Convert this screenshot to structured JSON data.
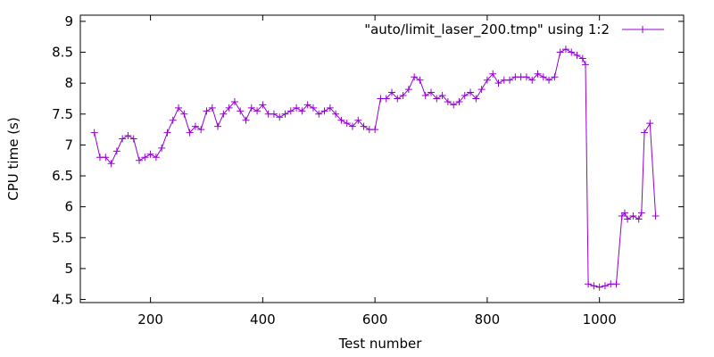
{
  "chart_data": {
    "type": "line",
    "xlabel": "Test number",
    "ylabel": "CPU time (s)",
    "xlim": [
      75,
      1150
    ],
    "ylim": [
      4.45,
      9.1
    ],
    "x_ticks": [
      {
        "value": 200,
        "label": "200"
      },
      {
        "value": 400,
        "label": "400"
      },
      {
        "value": 600,
        "label": "600"
      },
      {
        "value": 800,
        "label": "800"
      },
      {
        "value": 1000,
        "label": "1000"
      }
    ],
    "y_ticks": [
      {
        "value": 4.5,
        "label": "4.5"
      },
      {
        "value": 5,
        "label": "5"
      },
      {
        "value": 5.5,
        "label": "5.5"
      },
      {
        "value": 6,
        "label": "6"
      },
      {
        "value": 6.5,
        "label": "6.5"
      },
      {
        "value": 7,
        "label": "7"
      },
      {
        "value": 7.5,
        "label": "7.5"
      },
      {
        "value": 8,
        "label": "8"
      },
      {
        "value": 8.5,
        "label": "8.5"
      },
      {
        "value": 9,
        "label": "9"
      }
    ],
    "grid": false,
    "legend_position": "top-right",
    "series": [
      {
        "name": "\"auto/limit_laser_200.tmp\" using 1:2",
        "color": "#9400d3",
        "style": "linespoints",
        "marker": "plus",
        "x": [
          100,
          110,
          120,
          130,
          140,
          150,
          160,
          170,
          180,
          190,
          200,
          210,
          220,
          230,
          240,
          250,
          260,
          270,
          280,
          290,
          300,
          310,
          320,
          330,
          340,
          350,
          360,
          370,
          380,
          390,
          400,
          410,
          420,
          430,
          440,
          450,
          460,
          470,
          480,
          490,
          500,
          510,
          520,
          530,
          540,
          550,
          560,
          570,
          580,
          590,
          600,
          610,
          620,
          630,
          640,
          650,
          660,
          670,
          680,
          690,
          700,
          710,
          720,
          730,
          740,
          750,
          760,
          770,
          780,
          790,
          800,
          810,
          820,
          830,
          840,
          850,
          860,
          870,
          880,
          890,
          900,
          910,
          920,
          930,
          940,
          950,
          960,
          970,
          975,
          980,
          990,
          1000,
          1010,
          1020,
          1030,
          1040,
          1045,
          1050,
          1060,
          1070,
          1075,
          1080,
          1090,
          1100
        ],
        "y": [
          7.2,
          6.8,
          6.8,
          6.7,
          6.9,
          7.1,
          7.15,
          7.1,
          6.75,
          6.8,
          6.85,
          6.8,
          6.95,
          7.2,
          7.4,
          7.6,
          7.5,
          7.2,
          7.3,
          7.25,
          7.55,
          7.6,
          7.3,
          7.5,
          7.6,
          7.7,
          7.55,
          7.4,
          7.6,
          7.55,
          7.65,
          7.5,
          7.5,
          7.45,
          7.5,
          7.55,
          7.6,
          7.55,
          7.65,
          7.6,
          7.5,
          7.55,
          7.6,
          7.5,
          7.4,
          7.35,
          7.3,
          7.4,
          7.3,
          7.25,
          7.25,
          7.75,
          7.75,
          7.85,
          7.75,
          7.8,
          7.9,
          8.1,
          8.05,
          7.8,
          7.85,
          7.75,
          7.8,
          7.7,
          7.65,
          7.7,
          7.8,
          7.85,
          7.75,
          7.9,
          8.05,
          8.15,
          8.0,
          8.05,
          8.05,
          8.1,
          8.1,
          8.1,
          8.05,
          8.15,
          8.1,
          8.05,
          8.1,
          8.5,
          8.55,
          8.5,
          8.45,
          8.4,
          8.3,
          4.75,
          4.72,
          4.7,
          4.72,
          4.75,
          4.75,
          5.85,
          5.9,
          5.8,
          5.85,
          5.8,
          5.9,
          7.2,
          7.35,
          5.85
        ]
      }
    ]
  }
}
